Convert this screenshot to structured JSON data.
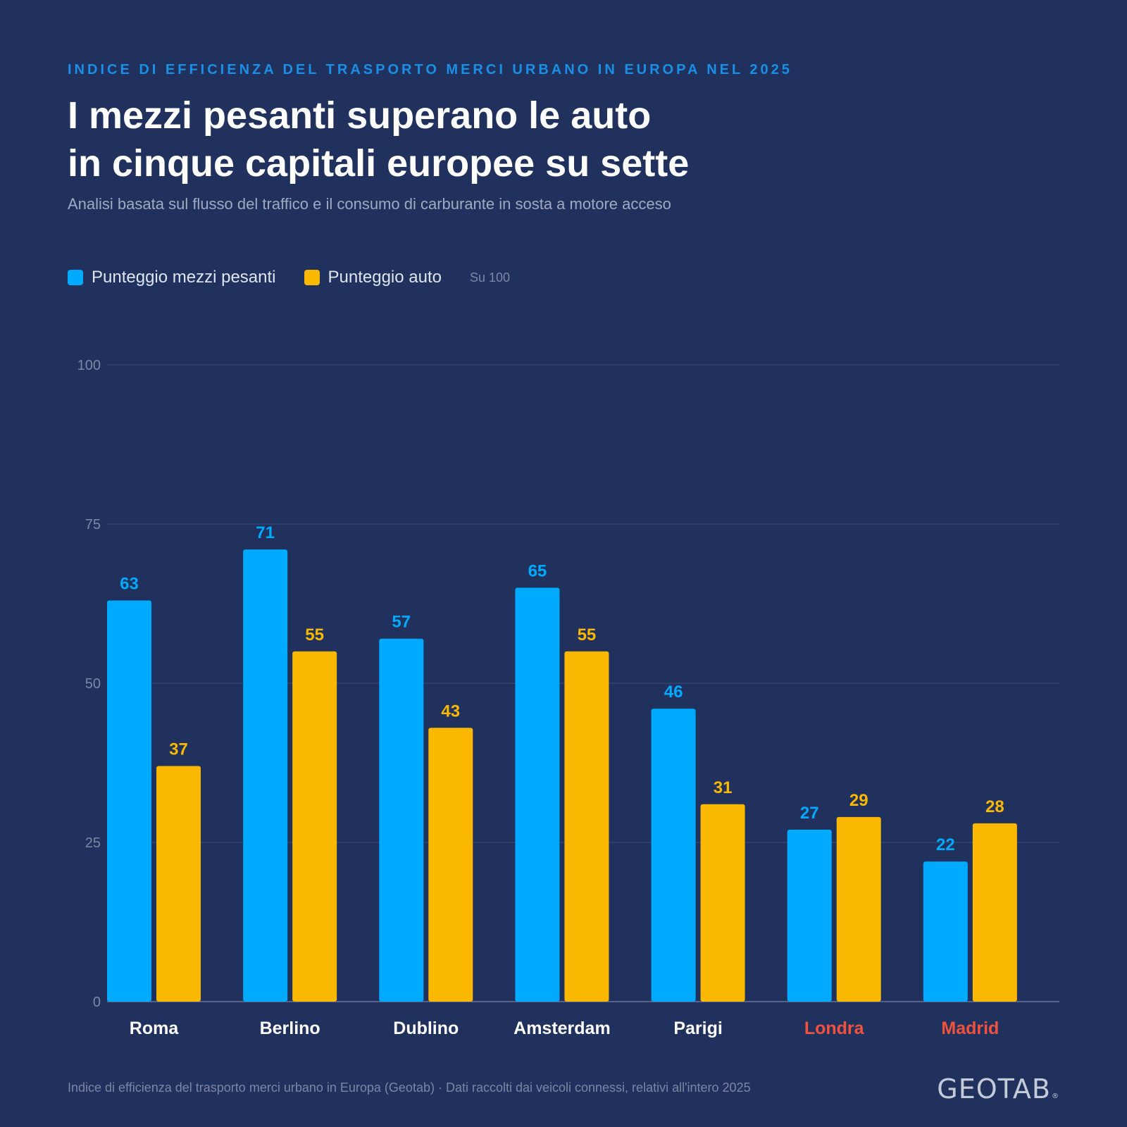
{
  "header": {
    "kicker": "INDICE DI EFFICIENZA DEL TRASPORTO MERCI URBANO IN EUROPA NEL 2025",
    "title_line1": "I mezzi pesanti superano le auto",
    "title_line2": "in cinque capitali europee su sette",
    "subtitle": "Analisi basata sul flusso del traffico e il consumo di carburante in sosta a motore acceso"
  },
  "legend": {
    "note": "Su 100"
  },
  "colors": {
    "trucks": "#00aaff",
    "cars": "#fab900",
    "highlight_label": "#f0523e",
    "axis_label": "#7c88a6"
  },
  "chart_data": {
    "type": "bar",
    "categories": [
      "Roma",
      "Berlino",
      "Dublino",
      "Amsterdam",
      "Parigi",
      "Londra",
      "Madrid"
    ],
    "highlighted_categories": [
      "Londra",
      "Madrid"
    ],
    "series": [
      {
        "name": "Punteggio mezzi pesanti",
        "values": [
          63,
          71,
          57,
          65,
          46,
          27,
          22
        ]
      },
      {
        "name": "Punteggio auto",
        "values": [
          37,
          55,
          43,
          55,
          31,
          29,
          28
        ]
      }
    ],
    "ylim": [
      0,
      100
    ],
    "yticks": [
      0,
      25,
      50,
      75,
      100
    ],
    "grid": true,
    "legend_position": "top-left"
  },
  "footer": {
    "source": "Indice di efficienza del trasporto merci urbano in Europa (Geotab) · Dati raccolti dai veicoli connessi, relativi all'intero 2025",
    "logo": "GEOTAB",
    "logo_mark": "®"
  }
}
